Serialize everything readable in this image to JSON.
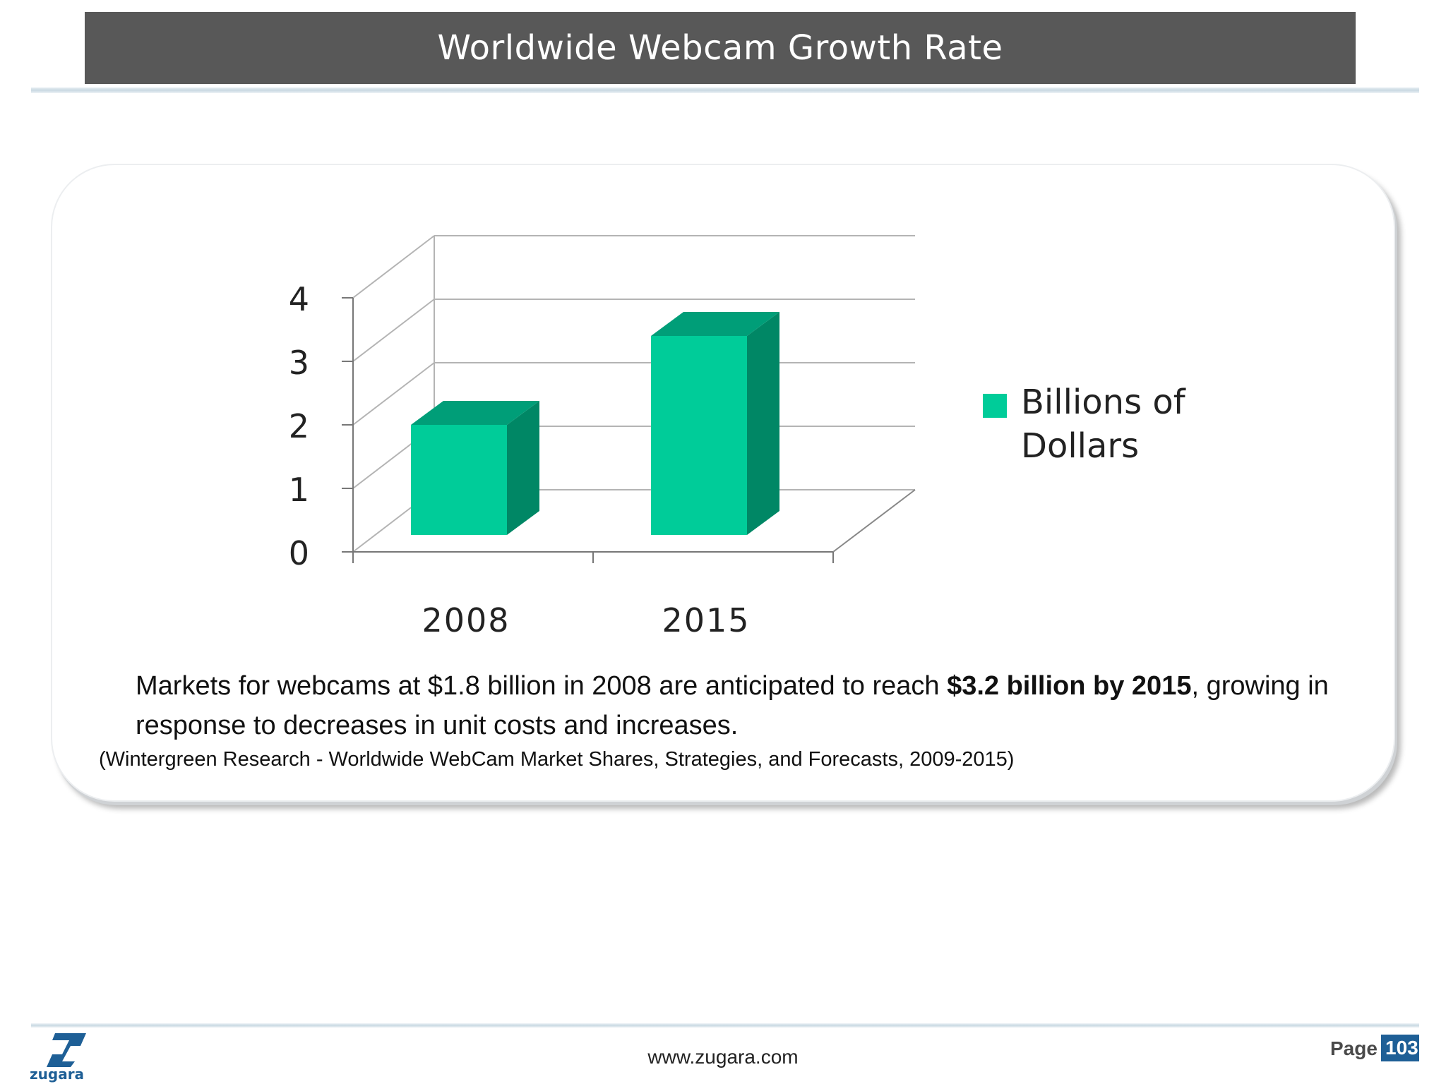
{
  "header": {
    "title": "Worldwide Webcam Growth Rate"
  },
  "colors": {
    "bar_front": "#00cc99",
    "bar_top": "#009e78",
    "bar_side": "#008765",
    "title_bar": "#585858",
    "brand_blue": "#1e5f96"
  },
  "chart_data": {
    "type": "bar",
    "style": "3d",
    "categories": [
      "2008",
      "2015"
    ],
    "series": [
      {
        "name": "Billions of Dollars",
        "values": [
          1.8,
          3.2
        ]
      }
    ],
    "ylim": [
      0,
      4
    ],
    "yticks": [
      "0",
      "1",
      "2",
      "3",
      "4"
    ],
    "legend": {
      "position": "right",
      "label_lines": [
        "Billions of",
        "Dollars"
      ]
    },
    "grid": true,
    "title": "",
    "xlabel": "",
    "ylabel": ""
  },
  "caption": {
    "text_before": "Markets for webcams at $1.8 billion in 2008 are anticipated to reach ",
    "bold": "$3.2 billion by 2015",
    "text_after": ", growing in response to decreases in unit costs and increases."
  },
  "source": "(Wintergreen Research - Worldwide WebCam Market Shares, Strategies, and Forecasts, 2009-2015)",
  "footer": {
    "logo_text": "zugara",
    "url": "www.zugara.com",
    "page_label": "Page",
    "page_number": "103"
  }
}
